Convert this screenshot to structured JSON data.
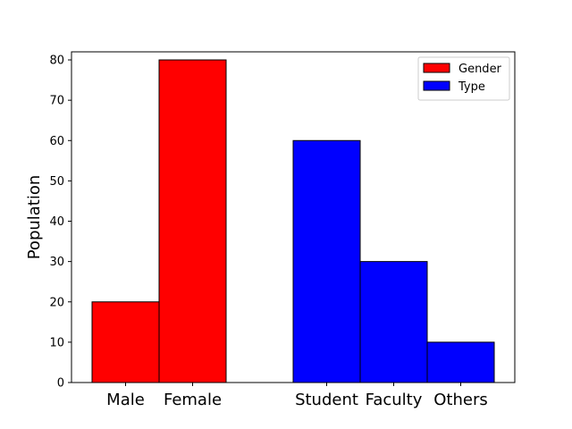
{
  "chart_data": {
    "type": "bar",
    "title": "",
    "xlabel": "",
    "ylabel": "Population",
    "ylim": [
      0,
      82
    ],
    "yticks": [
      0,
      10,
      20,
      30,
      40,
      50,
      60,
      70,
      80
    ],
    "grid": false,
    "legend_placement": "top-right",
    "series": [
      {
        "name": "Gender",
        "color": "#ff0000",
        "categories": [
          "Male",
          "Female"
        ],
        "values": [
          20,
          80
        ]
      },
      {
        "name": "Type",
        "color": "#0000ff",
        "categories": [
          "Student",
          "Faculty",
          "Others"
        ],
        "values": [
          60,
          30,
          10
        ]
      }
    ]
  }
}
